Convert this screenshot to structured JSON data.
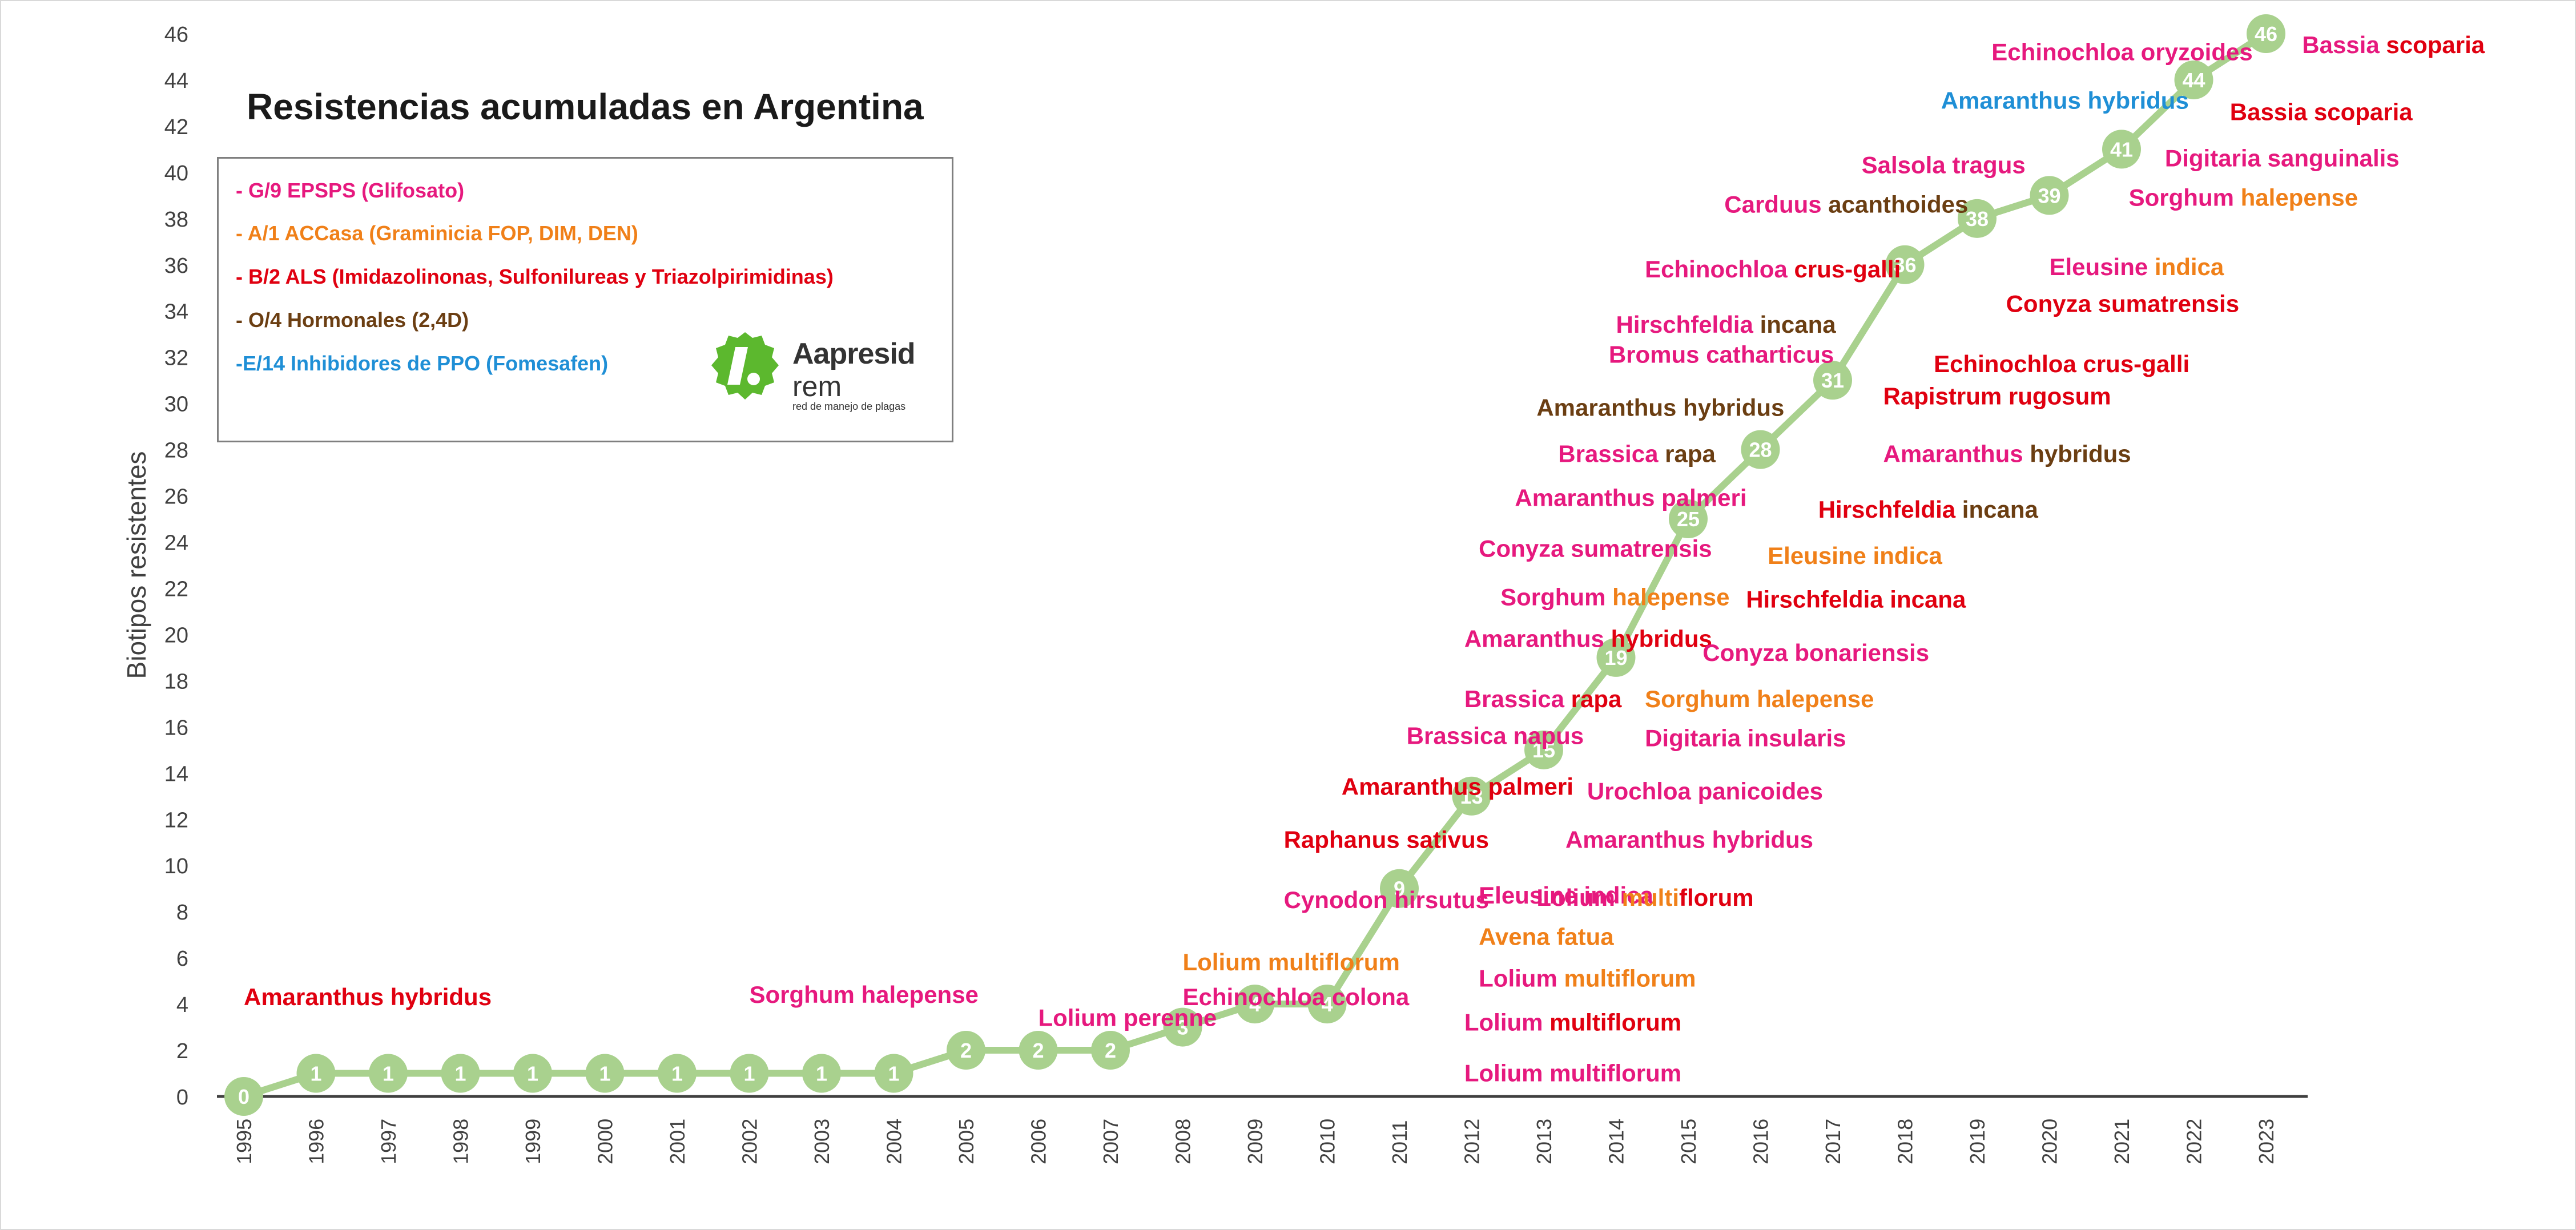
{
  "colors": {
    "glyphosate": "#e6197e",
    "accase": "#f08019",
    "als": "#e00010",
    "hormonal": "#6b3e12",
    "ppo": "#1f8fd6",
    "line": "#a9d18e",
    "axis": "#404040",
    "logo_green": "#5cb82e"
  },
  "title": "Resistencias acumuladas en Argentina",
  "legend": [
    {
      "label": "- G/9 EPSPS (Glifosato)",
      "color_key": "glyphosate"
    },
    {
      "label": "- A/1 ACCasa (Graminicia FOP, DIM, DEN)",
      "color_key": "accase"
    },
    {
      "label": "- B/2 ALS (Imidazolinonas, Sulfonilureas y Triazolpirimidinas)",
      "color_key": "als"
    },
    {
      "label": "- O/4 Hormonales (2,4D)",
      "color_key": "hormonal"
    },
    {
      "label": "-E/14 Inhibidores de PPO (Fomesafen)",
      "color_key": "ppo"
    }
  ],
  "logo": {
    "name": "Aapresid",
    "sub": "rem",
    "tagline": "red de manejo de plagas"
  },
  "chart_data": {
    "type": "line",
    "ylabel": "Biotipos resistentes",
    "xlabel": "",
    "ylim": [
      0,
      46
    ],
    "yticks": [
      0,
      2,
      4,
      6,
      8,
      10,
      12,
      14,
      16,
      18,
      20,
      22,
      24,
      26,
      28,
      30,
      32,
      34,
      36,
      38,
      40,
      42,
      44,
      46
    ],
    "categories": [
      "1995",
      "1996",
      "1997",
      "1998",
      "1999",
      "2000",
      "2001",
      "2002",
      "2003",
      "2004",
      "2005",
      "2006",
      "2007",
      "2008",
      "2009",
      "2010",
      "2011",
      "2012",
      "2013",
      "2014",
      "2015",
      "2016",
      "2017",
      "2018",
      "2019",
      "2020",
      "2021",
      "2022",
      "2023"
    ],
    "values": [
      0,
      1,
      1,
      1,
      1,
      1,
      1,
      1,
      1,
      1,
      2,
      2,
      2,
      3,
      4,
      4,
      9,
      13,
      15,
      19,
      25,
      28,
      31,
      36,
      38,
      39,
      41,
      44,
      46
    ],
    "grid": false,
    "annotations": [
      {
        "year": "1995",
        "y": 4.3,
        "parts": [
          {
            "text": "Amaranthus hybridus",
            "c": "als"
          }
        ]
      },
      {
        "year": "2002",
        "y": 4.4,
        "parts": [
          {
            "text": "Sorghum halepense",
            "c": "glyphosate"
          }
        ]
      },
      {
        "year": "2006",
        "y": 3.4,
        "parts": [
          {
            "text": "Lolium perenne",
            "c": "glyphosate"
          }
        ]
      },
      {
        "year": "2008",
        "y": 5.8,
        "parts": [
          {
            "text": "Lolium multiflorum",
            "c": "accase"
          }
        ]
      },
      {
        "year": "2008",
        "y": 4.3,
        "parts": [
          {
            "text": "Echinochloa colona",
            "c": "glyphosate"
          }
        ]
      },
      {
        "year": "2009.4",
        "y": 11.1,
        "parts": [
          {
            "text": "Raphanus sativus",
            "c": "als"
          }
        ]
      },
      {
        "year": "2009.4",
        "y": 8.5,
        "parts": [
          {
            "text": "Cynodon hirsutus",
            "c": "glyphosate"
          }
        ]
      },
      {
        "year": "2010.2",
        "y": 13.4,
        "parts": [
          {
            "text": "Amaranthus palmeri",
            "c": "als"
          }
        ]
      },
      {
        "year": "2012.1",
        "y": 8.7,
        "parts": [
          {
            "text": "Eleusine indica",
            "c": "glyphosate"
          }
        ]
      },
      {
        "year": "2012.1",
        "y": 6.9,
        "parts": [
          {
            "text": "Avena fatua",
            "c": "accase"
          }
        ]
      },
      {
        "year": "2012.1",
        "y": 5.1,
        "parts": [
          {
            "text": "Lolium ",
            "c": "glyphosate"
          },
          {
            "text": "multiflorum",
            "c": "accase"
          }
        ]
      },
      {
        "year": "2011.9",
        "y": 3.2,
        "parts": [
          {
            "text": "Lolium ",
            "c": "glyphosate"
          },
          {
            "text": "multiflorum",
            "c": "als"
          }
        ]
      },
      {
        "year": "2011.9",
        "y": 1.0,
        "parts": [
          {
            "text": "Lolium multiflorum",
            "c": "glyphosate"
          }
        ]
      },
      {
        "year": "2011.1",
        "y": 15.6,
        "parts": [
          {
            "text": "Brassica napus",
            "c": "glyphosate"
          }
        ]
      },
      {
        "year": "2011.9",
        "y": 17.2,
        "parts": [
          {
            "text": "Brassica ",
            "c": "glyphosate"
          },
          {
            "text": "rapa",
            "c": "als"
          }
        ]
      },
      {
        "year": "2011.9",
        "y": 19.8,
        "parts": [
          {
            "text": "Amaranthus ",
            "c": "glyphosate"
          },
          {
            "text": "hybridus",
            "c": "als"
          }
        ]
      },
      {
        "year": "2012.4",
        "y": 21.6,
        "parts": [
          {
            "text": "Sorghum ",
            "c": "glyphosate"
          },
          {
            "text": "halepense",
            "c": "accase"
          }
        ]
      },
      {
        "year": "2012.1",
        "y": 23.7,
        "parts": [
          {
            "text": "Conyza sumatrensis",
            "c": "glyphosate"
          }
        ]
      },
      {
        "year": "2012.6",
        "y": 25.9,
        "parts": [
          {
            "text": "Amaranthus palmeri",
            "c": "glyphosate"
          }
        ]
      },
      {
        "year": "2013.2",
        "y": 27.8,
        "parts": [
          {
            "text": "Brassica ",
            "c": "glyphosate"
          },
          {
            "text": "rapa",
            "c": "hormonal"
          }
        ]
      },
      {
        "year": "2012.9",
        "y": 29.8,
        "parts": [
          {
            "text": "Amaranthus hybridus",
            "c": "hormonal"
          }
        ]
      },
      {
        "year": "2013.9",
        "y": 32.1,
        "parts": [
          {
            "text": "Bromus catharticus",
            "c": "glyphosate"
          }
        ]
      },
      {
        "year": "2014",
        "y": 33.4,
        "parts": [
          {
            "text": "Hirschfeldia ",
            "c": "glyphosate"
          },
          {
            "text": "incana",
            "c": "hormonal"
          }
        ]
      },
      {
        "year": "2014.4",
        "y": 35.8,
        "parts": [
          {
            "text": "Echinochloa ",
            "c": "glyphosate"
          },
          {
            "text": "crus-galli",
            "c": "als"
          }
        ]
      },
      {
        "year": "2015.5",
        "y": 38.6,
        "parts": [
          {
            "text": "Carduus ",
            "c": "glyphosate"
          },
          {
            "text": "acanthoides",
            "c": "hormonal"
          }
        ]
      },
      {
        "year": "2017.4",
        "y": 40.3,
        "parts": [
          {
            "text": "Salsola tragus",
            "c": "glyphosate"
          }
        ]
      },
      {
        "year": "2018.5",
        "y": 43.1,
        "parts": [
          {
            "text": "Amaranthus hybridus",
            "c": "ppo"
          }
        ]
      },
      {
        "year": "2019.2",
        "y": 45.2,
        "parts": [
          {
            "text": "Echinochloa oryzoides",
            "c": "glyphosate"
          }
        ]
      },
      {
        "year": "2023.5",
        "y": 45.5,
        "parts": [
          {
            "text": "Bassia ",
            "c": "glyphosate"
          },
          {
            "text": "scoparia",
            "c": "als"
          }
        ]
      },
      {
        "year": "2022.5",
        "y": 42.6,
        "parts": [
          {
            "text": "Bassia scoparia",
            "c": "als"
          }
        ]
      },
      {
        "year": "2021.6",
        "y": 40.6,
        "parts": [
          {
            "text": "Digitaria sanguinalis",
            "c": "glyphosate"
          }
        ]
      },
      {
        "year": "2021.1",
        "y": 38.9,
        "parts": [
          {
            "text": "Sorghum ",
            "c": "glyphosate"
          },
          {
            "text": "halepense",
            "c": "accase"
          }
        ]
      },
      {
        "year": "2020",
        "y": 35.9,
        "parts": [
          {
            "text": "Eleusine ",
            "c": "glyphosate"
          },
          {
            "text": "indica",
            "c": "accase"
          }
        ]
      },
      {
        "year": "2019.4",
        "y": 34.3,
        "parts": [
          {
            "text": "Conyza sumatrensis",
            "c": "als"
          }
        ]
      },
      {
        "year": "2018.4",
        "y": 31.7,
        "parts": [
          {
            "text": "Echinochloa crus-galli",
            "c": "als"
          }
        ]
      },
      {
        "year": "2017.7",
        "y": 30.3,
        "parts": [
          {
            "text": "Rapistrum rugosum",
            "c": "als"
          }
        ]
      },
      {
        "year": "2017.7",
        "y": 27.8,
        "parts": [
          {
            "text": "Amaranthus ",
            "c": "glyphosate"
          },
          {
            "text": "hybridus",
            "c": "hormonal"
          }
        ]
      },
      {
        "year": "2016.8",
        "y": 25.4,
        "parts": [
          {
            "text": "Hirschfeldia ",
            "c": "als"
          },
          {
            "text": "incana",
            "c": "hormonal"
          }
        ]
      },
      {
        "year": "2016.1",
        "y": 23.4,
        "parts": [
          {
            "text": "Eleusine indica",
            "c": "accase"
          }
        ]
      },
      {
        "year": "2015.8",
        "y": 21.5,
        "parts": [
          {
            "text": "Hirschfeldia incana",
            "c": "als"
          }
        ]
      },
      {
        "year": "2015.2",
        "y": 19.2,
        "parts": [
          {
            "text": "Conyza bonariensis",
            "c": "glyphosate"
          }
        ]
      },
      {
        "year": "2014.4",
        "y": 17.2,
        "parts": [
          {
            "text": "Sorghum halepense",
            "c": "accase"
          }
        ]
      },
      {
        "year": "2014.4",
        "y": 15.5,
        "parts": [
          {
            "text": "Digitaria insularis",
            "c": "glyphosate"
          }
        ]
      },
      {
        "year": "2013.6",
        "y": 13.2,
        "parts": [
          {
            "text": "Urochloa panicoides",
            "c": "glyphosate"
          }
        ]
      },
      {
        "year": "2013.3",
        "y": 11.1,
        "parts": [
          {
            "text": "Amaranthus hybridus",
            "c": "glyphosate"
          }
        ]
      },
      {
        "year": "2012.9",
        "y": 8.6,
        "parts": [
          {
            "text": "Lolium ",
            "c": "glyphosate"
          },
          {
            "text": "multi",
            "c": "accase"
          },
          {
            "text": "florum",
            "c": "als"
          }
        ]
      }
    ]
  }
}
